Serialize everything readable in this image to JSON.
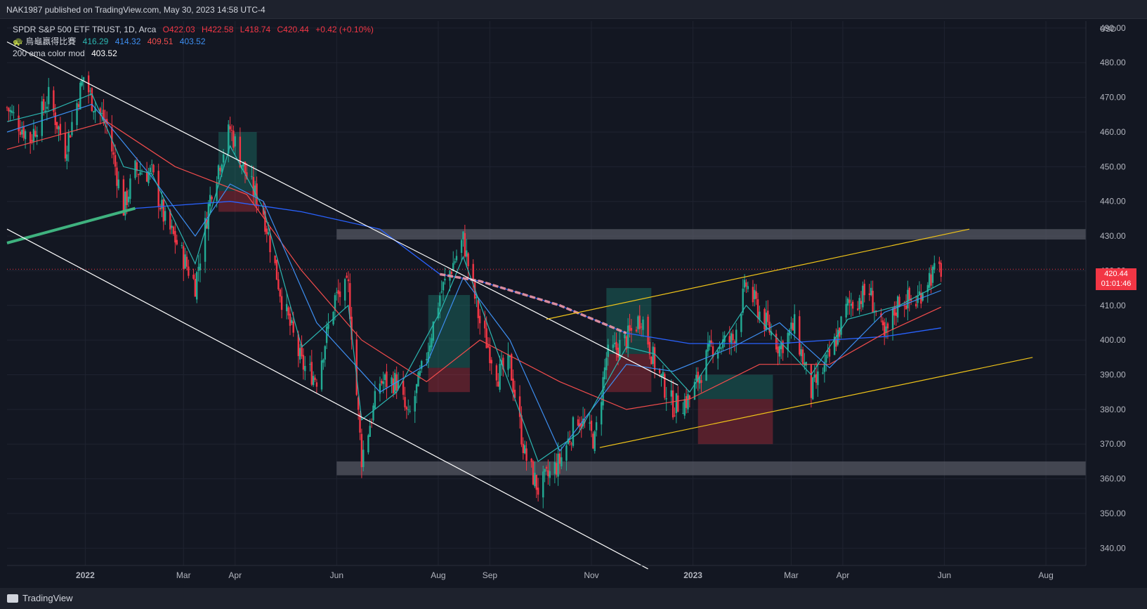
{
  "header": {
    "publisher_line": "NAK1987 published on TradingView.com, May 30, 2023 14:58 UTC-4"
  },
  "legend": {
    "symbol": "SPDR S&P 500 ETF TRUST, 1D, Arca",
    "ohlc": {
      "o_label": "O",
      "o": "422.03",
      "h_label": "H",
      "h": "422.58",
      "l_label": "L",
      "l": "418.74",
      "c_label": "C",
      "c": "420.44",
      "change": "+0.42 (+0.10%)"
    },
    "indicator1": {
      "name": "烏龜贏得比賽",
      "v1": "416.29",
      "v2": "414.32",
      "v3": "409.51",
      "v4": "403.52"
    },
    "indicator2": {
      "name": "200 ema color mod",
      "value": "403.52"
    }
  },
  "price_tag": {
    "price": "420.44",
    "countdown": "01:01:46"
  },
  "footer": {
    "brand": "TradingView"
  },
  "colors": {
    "background": "#131722",
    "up": "#22ab94",
    "down": "#f23645",
    "ema_fast": "#2bb5b0",
    "ema_mid": "#2962ff",
    "ema_slow": "#f24c4c",
    "trendline": "#ffffff",
    "channel": "#f0c419"
  },
  "chart_data": {
    "type": "candlestick",
    "currency_label": "USD",
    "y_ticks": [
      340,
      350,
      360,
      370,
      380,
      390,
      400,
      410,
      420,
      430,
      440,
      450,
      460,
      470,
      480,
      490
    ],
    "y_tick_labels": [
      "340.00",
      "350.00",
      "360.00",
      "370.00",
      "380.00",
      "390.00",
      "400.00",
      "410.00",
      "420.00",
      "430.00",
      "440.00",
      "450.00",
      "460.00",
      "470.00",
      "480.00",
      "490.00"
    ],
    "ylim": [
      335,
      492
    ],
    "x_labels": [
      "2022",
      "Mar",
      "Apr",
      "Jun",
      "Aug",
      "Sep",
      "Nov",
      "2023",
      "Mar",
      "Apr",
      "Jun",
      "Aug"
    ],
    "x_label_dates": [
      "2022-01-01",
      "2022-03-01",
      "2022-04-01",
      "2022-06-01",
      "2022-08-01",
      "2022-09-01",
      "2022-11-01",
      "2023-01-01",
      "2023-03-01",
      "2023-04-01",
      "2023-06-01",
      "2023-08-01"
    ],
    "xlim": [
      "2021-11-15",
      "2023-08-25"
    ],
    "last_price": 420.44,
    "closes": [
      [
        "2021-11-15",
        467
      ],
      [
        "2021-11-29",
        458
      ],
      [
        "2021-12-10",
        470
      ],
      [
        "2021-12-20",
        455
      ],
      [
        "2021-12-31",
        476
      ],
      [
        "2022-01-05",
        469
      ],
      [
        "2022-01-14",
        462
      ],
      [
        "2022-01-24",
        438
      ],
      [
        "2022-01-31",
        449
      ],
      [
        "2022-02-10",
        448
      ],
      [
        "2022-02-18",
        434
      ],
      [
        "2022-02-24",
        429
      ],
      [
        "2022-03-08",
        416
      ],
      [
        "2022-03-18",
        444
      ],
      [
        "2022-03-29",
        461
      ],
      [
        "2022-04-08",
        447
      ],
      [
        "2022-04-18",
        437
      ],
      [
        "2022-04-29",
        412
      ],
      [
        "2022-05-11",
        393
      ],
      [
        "2022-05-20",
        389
      ],
      [
        "2022-05-31",
        412
      ],
      [
        "2022-06-08",
        415
      ],
      [
        "2022-06-16",
        366
      ],
      [
        "2022-06-27",
        388
      ],
      [
        "2022-07-07",
        388
      ],
      [
        "2022-07-14",
        377
      ],
      [
        "2022-07-25",
        396
      ],
      [
        "2022-08-02",
        413
      ],
      [
        "2022-08-16",
        429
      ],
      [
        "2022-08-26",
        405
      ],
      [
        "2022-09-06",
        390
      ],
      [
        "2022-09-13",
        393
      ],
      [
        "2022-09-22",
        367
      ],
      [
        "2022-09-30",
        357
      ],
      [
        "2022-10-13",
        365
      ],
      [
        "2022-10-24",
        378
      ],
      [
        "2022-11-03",
        371
      ],
      [
        "2022-11-10",
        395
      ],
      [
        "2022-11-22",
        400
      ],
      [
        "2022-12-01",
        407
      ],
      [
        "2022-12-09",
        393
      ],
      [
        "2022-12-20",
        381
      ],
      [
        "2022-12-30",
        383
      ],
      [
        "2023-01-12",
        398
      ],
      [
        "2023-01-25",
        400
      ],
      [
        "2023-02-02",
        416
      ],
      [
        "2023-02-10",
        408
      ],
      [
        "2023-02-22",
        398
      ],
      [
        "2023-03-03",
        404
      ],
      [
        "2023-03-13",
        385
      ],
      [
        "2023-03-24",
        395
      ],
      [
        "2023-04-04",
        410
      ],
      [
        "2023-04-17",
        414
      ],
      [
        "2023-04-26",
        400
      ],
      [
        "2023-05-05",
        412
      ],
      [
        "2023-05-15",
        411
      ],
      [
        "2023-05-22",
        418
      ],
      [
        "2023-05-30",
        420.44
      ]
    ],
    "ema_fast": [
      [
        "2021-11-15",
        463
      ],
      [
        "2021-12-10",
        466
      ],
      [
        "2022-01-05",
        471
      ],
      [
        "2022-01-24",
        450
      ],
      [
        "2022-02-10",
        448
      ],
      [
        "2022-03-08",
        422
      ],
      [
        "2022-03-29",
        456
      ],
      [
        "2022-04-18",
        438
      ],
      [
        "2022-05-11",
        398
      ],
      [
        "2022-06-08",
        410
      ],
      [
        "2022-06-16",
        377
      ],
      [
        "2022-07-07",
        385
      ],
      [
        "2022-08-02",
        408
      ],
      [
        "2022-08-16",
        424
      ],
      [
        "2022-09-06",
        396
      ],
      [
        "2022-09-30",
        365
      ],
      [
        "2022-10-24",
        373
      ],
      [
        "2022-11-22",
        398
      ],
      [
        "2022-12-09",
        396
      ],
      [
        "2022-12-30",
        385
      ],
      [
        "2023-02-02",
        410
      ],
      [
        "2023-03-13",
        390
      ],
      [
        "2023-04-04",
        406
      ],
      [
        "2023-05-05",
        410
      ],
      [
        "2023-05-30",
        416.29
      ]
    ],
    "ema_mid": [
      [
        "2021-11-15",
        460
      ],
      [
        "2022-01-05",
        468
      ],
      [
        "2022-02-10",
        447
      ],
      [
        "2022-03-08",
        430
      ],
      [
        "2022-03-29",
        445
      ],
      [
        "2022-04-18",
        440
      ],
      [
        "2022-05-20",
        405
      ],
      [
        "2022-06-27",
        385
      ],
      [
        "2022-07-25",
        393
      ],
      [
        "2022-08-16",
        418
      ],
      [
        "2022-09-13",
        400
      ],
      [
        "2022-10-13",
        368
      ],
      [
        "2022-11-22",
        393
      ],
      [
        "2022-12-20",
        391
      ],
      [
        "2023-01-25",
        398
      ],
      [
        "2023-02-22",
        405
      ],
      [
        "2023-03-24",
        392
      ],
      [
        "2023-04-26",
        408
      ],
      [
        "2023-05-30",
        414.32
      ]
    ],
    "ema_slow": [
      [
        "2021-11-15",
        455
      ],
      [
        "2022-01-14",
        463
      ],
      [
        "2022-02-24",
        450
      ],
      [
        "2022-04-08",
        442
      ],
      [
        "2022-05-11",
        420
      ],
      [
        "2022-06-16",
        400
      ],
      [
        "2022-07-25",
        388
      ],
      [
        "2022-08-26",
        400
      ],
      [
        "2022-10-13",
        388
      ],
      [
        "2022-11-22",
        380
      ],
      [
        "2022-12-30",
        383
      ],
      [
        "2023-02-10",
        393
      ],
      [
        "2023-03-24",
        393
      ],
      [
        "2023-04-26",
        402
      ],
      [
        "2023-05-30",
        409.51
      ]
    ],
    "ema_200": [
      [
        "2021-11-15",
        428
      ],
      [
        "2022-01-31",
        438
      ],
      [
        "2022-03-29",
        440
      ],
      [
        "2022-05-11",
        437
      ],
      [
        "2022-06-27",
        432
      ],
      [
        "2022-08-02",
        419
      ],
      [
        "2022-08-26",
        417
      ],
      [
        "2022-10-13",
        410
      ],
      [
        "2022-11-22",
        402
      ],
      [
        "2022-12-30",
        399
      ],
      [
        "2023-02-22",
        399
      ],
      [
        "2023-03-24",
        400
      ],
      [
        "2023-04-26",
        401
      ],
      [
        "2023-05-30",
        403.52
      ]
    ],
    "zones": [
      {
        "from": "2022-06-01",
        "to": "2023-08-25",
        "low": 429,
        "high": 432
      },
      {
        "from": "2022-06-01",
        "to": "2023-08-25",
        "low": 361,
        "high": 365
      }
    ],
    "trend_lines": [
      {
        "kind": "resistance",
        "from": [
          "2021-11-15",
          486
        ],
        "to": [
          "2022-12-23",
          387
        ]
      },
      {
        "kind": "support",
        "from": [
          "2021-11-15",
          432
        ],
        "to": [
          "2022-12-05",
          334
        ]
      },
      {
        "kind": "channel-top",
        "from": [
          "2022-10-05",
          406
        ],
        "to": [
          "2023-06-16",
          432
        ]
      },
      {
        "kind": "channel-bottom",
        "from": [
          "2022-11-06",
          369
        ],
        "to": [
          "2023-07-24",
          395
        ]
      }
    ],
    "position_boxes": [
      {
        "from": "2022-03-22",
        "to": "2022-04-14",
        "target_low": 443,
        "target_high": 460,
        "stop_low": 437,
        "stop_high": 443
      },
      {
        "from": "2022-07-26",
        "to": "2022-08-20",
        "target_low": 392,
        "target_high": 413,
        "stop_low": 385,
        "stop_high": 392
      },
      {
        "from": "2022-11-10",
        "to": "2022-12-07",
        "target_low": 396,
        "target_high": 415,
        "stop_low": 385,
        "stop_high": 396
      },
      {
        "from": "2023-01-04",
        "to": "2023-02-18",
        "target_low": 383,
        "target_high": 390,
        "stop_low": 370,
        "stop_high": 383
      }
    ]
  }
}
